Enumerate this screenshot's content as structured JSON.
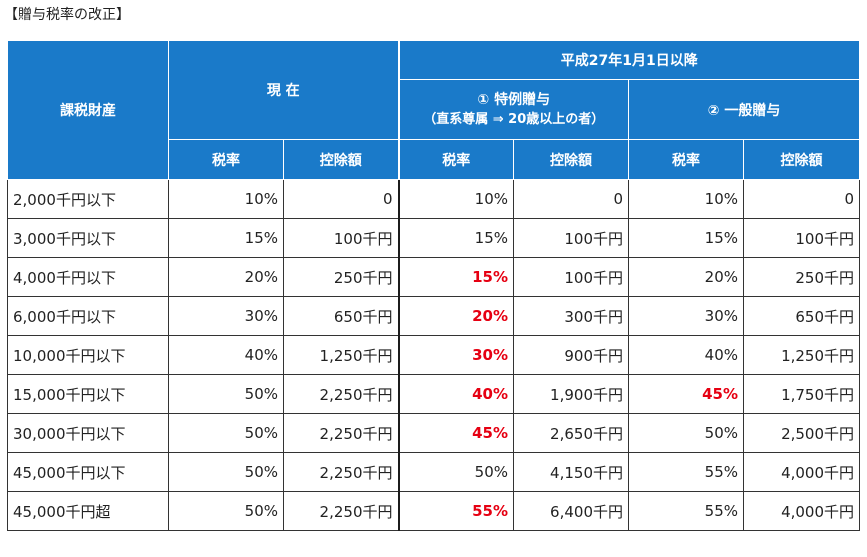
{
  "caption": "【贈与税率の改正】",
  "header": {
    "category": "課税財産",
    "current": "現 在",
    "after": "平成27年1月1日以降",
    "special_title": "① 特例贈与",
    "special_note": "（直系尊属 ⇒ 20歳以上の者）",
    "general_title": "② 一般贈与",
    "rate": "税率",
    "deduction": "控除額"
  },
  "highlight_color": "#e60012",
  "header_color": "#1a7ac9",
  "rows": [
    {
      "label": "2,000千円以下",
      "cur_rate": "10%",
      "cur_ded": "0",
      "sp_rate": "10%",
      "sp_ded": "0",
      "gen_rate": "10%",
      "gen_ded": "0",
      "hl_sp": false,
      "hl_gen": false
    },
    {
      "label": "3,000千円以下",
      "cur_rate": "15%",
      "cur_ded": "100千円",
      "sp_rate": "15%",
      "sp_ded": "100千円",
      "gen_rate": "15%",
      "gen_ded": "100千円",
      "hl_sp": false,
      "hl_gen": false
    },
    {
      "label": "4,000千円以下",
      "cur_rate": "20%",
      "cur_ded": "250千円",
      "sp_rate": "15%",
      "sp_ded": "100千円",
      "gen_rate": "20%",
      "gen_ded": "250千円",
      "hl_sp": true,
      "hl_gen": false
    },
    {
      "label": "6,000千円以下",
      "cur_rate": "30%",
      "cur_ded": "650千円",
      "sp_rate": "20%",
      "sp_ded": "300千円",
      "gen_rate": "30%",
      "gen_ded": "650千円",
      "hl_sp": true,
      "hl_gen": false
    },
    {
      "label": "10,000千円以下",
      "cur_rate": "40%",
      "cur_ded": "1,250千円",
      "sp_rate": "30%",
      "sp_ded": "900千円",
      "gen_rate": "40%",
      "gen_ded": "1,250千円",
      "hl_sp": true,
      "hl_gen": false
    },
    {
      "label": "15,000千円以下",
      "cur_rate": "50%",
      "cur_ded": "2,250千円",
      "sp_rate": "40%",
      "sp_ded": "1,900千円",
      "gen_rate": "45%",
      "gen_ded": "1,750千円",
      "hl_sp": true,
      "hl_gen": true
    },
    {
      "label": "30,000千円以下",
      "cur_rate": "50%",
      "cur_ded": "2,250千円",
      "sp_rate": "45%",
      "sp_ded": "2,650千円",
      "gen_rate": "50%",
      "gen_ded": "2,500千円",
      "hl_sp": true,
      "hl_gen": false
    },
    {
      "label": "45,000千円以下",
      "cur_rate": "50%",
      "cur_ded": "2,250千円",
      "sp_rate": "50%",
      "sp_ded": "4,150千円",
      "gen_rate": "55%",
      "gen_ded": "4,000千円",
      "hl_sp": false,
      "hl_gen": false
    },
    {
      "label": "45,000千円超",
      "cur_rate": "50%",
      "cur_ded": "2,250千円",
      "sp_rate": "55%",
      "sp_ded": "6,400千円",
      "gen_rate": "55%",
      "gen_ded": "4,000千円",
      "hl_sp": true,
      "hl_gen": false
    }
  ]
}
